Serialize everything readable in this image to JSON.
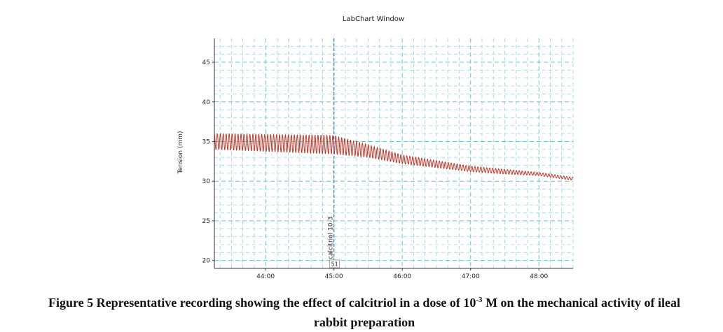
{
  "chart_data": {
    "type": "line",
    "title": "LabChart Window",
    "ylabel": "Tension (mm)",
    "xlabel": "",
    "xlim": [
      "43:15",
      "48:30"
    ],
    "ylim": [
      19,
      48
    ],
    "x_ticks": [
      "44:00",
      "45:00",
      "46:00",
      "47:00",
      "48:00"
    ],
    "y_ticks": [
      20,
      25,
      30,
      35,
      40,
      45
    ],
    "grid": true,
    "series": [
      {
        "color": "#c0392b",
        "style": "oscillating",
        "x": [
          "43:15",
          "45:00",
          "45:30",
          "46:00",
          "46:30",
          "47:00",
          "47:30",
          "48:00",
          "48:30"
        ],
        "upper": [
          36.0,
          35.8,
          34.6,
          33.3,
          32.6,
          31.9,
          31.5,
          31.1,
          30.5
        ],
        "lower": [
          34.0,
          33.4,
          33.0,
          32.2,
          31.7,
          31.2,
          30.9,
          30.7,
          30.1
        ]
      }
    ],
    "annotations": [
      {
        "x": "45:00",
        "text": "calcitriol 10-3",
        "marker": "51"
      }
    ]
  },
  "caption": {
    "part1": "Figure 5 Representative recording showing the effect of calcitriol in a dose of 10",
    "superscript": "-3",
    "part2": " M on the mechanical activity of ileal",
    "line2": "rabbit preparation"
  }
}
